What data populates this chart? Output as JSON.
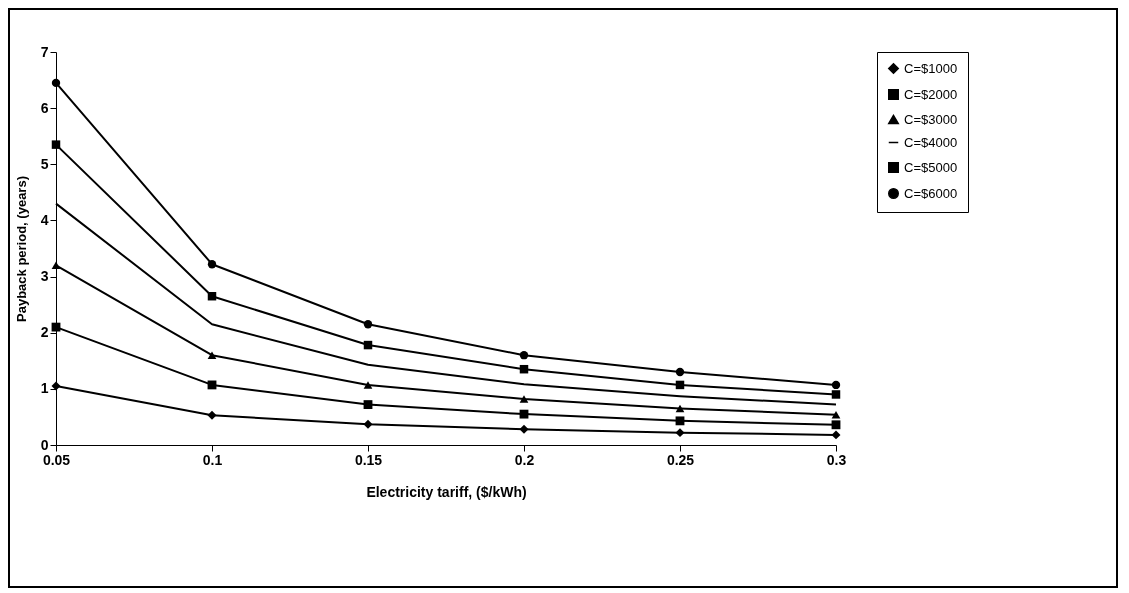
{
  "chart_data": {
    "type": "line",
    "xlabel": "Electricity tariff, ($/kWh)",
    "ylabel": "Payback period, (years)",
    "x": [
      0.05,
      0.1,
      0.15,
      0.2,
      0.25,
      0.3
    ],
    "xlim": [
      0.05,
      0.3
    ],
    "xticks": [
      0.05,
      0.1,
      0.15,
      0.2,
      0.25,
      0.3
    ],
    "ylim": [
      0,
      7
    ],
    "yticks": [
      0,
      1,
      2,
      3,
      4,
      5,
      6,
      7
    ],
    "grid": false,
    "legend": "right",
    "series": [
      {
        "name": "C=$1000",
        "color": "#000000",
        "marker": "diamond",
        "values": [
          1.05,
          0.53,
          0.37,
          0.28,
          0.22,
          0.18
        ]
      },
      {
        "name": "C=$2000",
        "color": "#000000",
        "marker": "square",
        "values": [
          2.1,
          1.07,
          0.72,
          0.55,
          0.43,
          0.36
        ]
      },
      {
        "name": "C=$3000",
        "color": "#000000",
        "marker": "triangle",
        "values": [
          3.2,
          1.6,
          1.07,
          0.82,
          0.65,
          0.54
        ]
      },
      {
        "name": "C=$4000",
        "color": "#000000",
        "marker": "none",
        "values": [
          4.3,
          2.15,
          1.43,
          1.08,
          0.87,
          0.72
        ]
      },
      {
        "name": "C=$5000",
        "color": "#000000",
        "marker": "square",
        "values": [
          5.35,
          2.65,
          1.78,
          1.35,
          1.07,
          0.9
        ]
      },
      {
        "name": "C=$6000",
        "color": "#000000",
        "marker": "circle",
        "values": [
          6.45,
          3.22,
          2.15,
          1.6,
          1.3,
          1.07
        ]
      }
    ]
  }
}
